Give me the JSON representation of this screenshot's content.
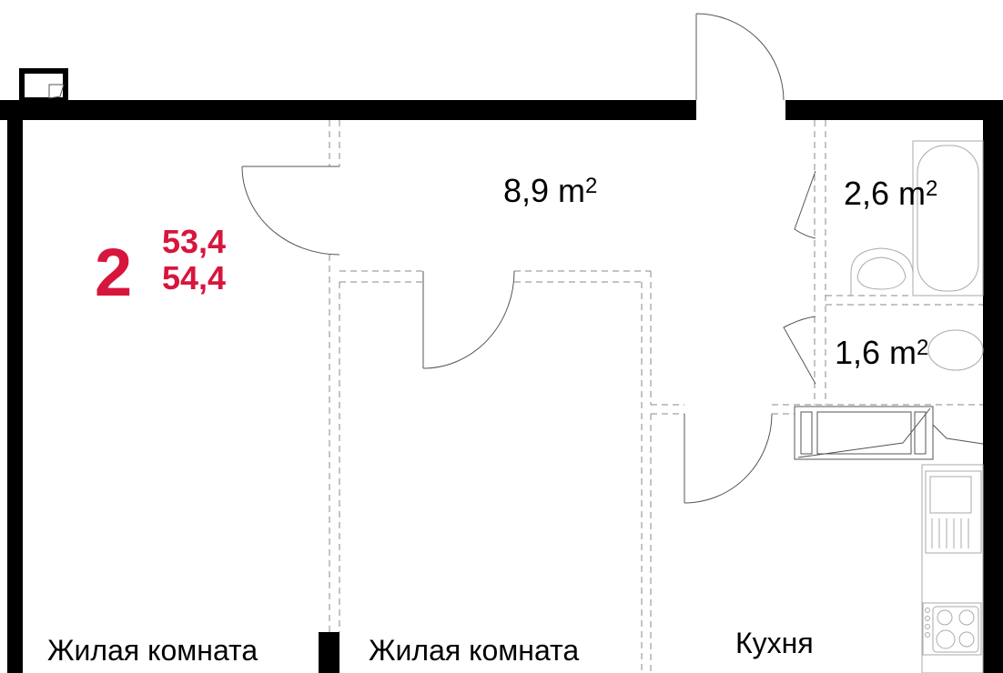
{
  "plan": {
    "rooms_count": "2",
    "area_1": "53,4",
    "area_2": "54,4",
    "accent_color": "#d7163d",
    "hall_area": "8,9 m",
    "bath_area": "2,6 m",
    "wc_area": "1,6 m",
    "sup": "2",
    "room1_label": "Жилая комната",
    "room2_label": "Жилая комната",
    "kitchen_label": "Кухня"
  }
}
